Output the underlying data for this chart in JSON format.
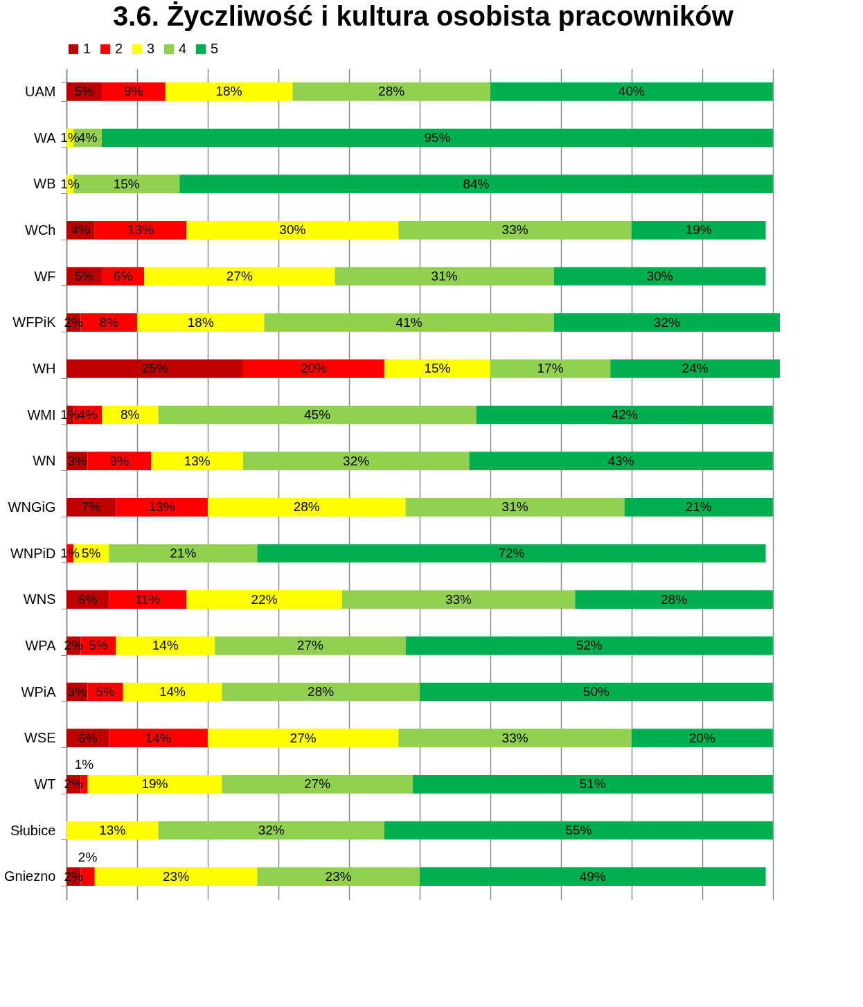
{
  "chart_data": {
    "type": "bar",
    "orientation": "horizontal",
    "stacked": true,
    "title": "3.6. Życzliwość i kultura osobista pracowników",
    "categories": [
      "UAM",
      "WA",
      "WB",
      "WCh",
      "WF",
      "WFPiK",
      "WH",
      "WMI",
      "WN",
      "WNGiG",
      "WNPiD",
      "WNS",
      "WPA",
      "WPiA",
      "WSE",
      "WT",
      "Słubice",
      "Gniezno"
    ],
    "series": [
      {
        "name": "1",
        "color": "#c00000",
        "values": [
          5,
          null,
          null,
          4,
          5,
          2,
          25,
          1,
          3,
          7,
          null,
          6,
          2,
          3,
          6,
          2,
          null,
          2
        ],
        "value_labels": [
          "5%",
          null,
          null,
          "4%",
          "5%",
          "2%",
          "25%",
          "1%",
          "3%",
          "7%",
          null,
          "6%",
          "2%",
          "3%",
          "6%",
          "2%",
          null,
          "2%"
        ]
      },
      {
        "name": "2",
        "color": "#ff0000",
        "values": [
          9,
          null,
          null,
          13,
          6,
          8,
          20,
          4,
          9,
          13,
          1,
          11,
          5,
          5,
          14,
          1,
          null,
          2
        ],
        "value_labels": [
          "9%",
          null,
          null,
          "13%",
          "6%",
          "8%",
          "20%",
          "4%",
          "9%",
          "13%",
          "1%",
          "11%",
          "5%",
          "5%",
          "14%",
          "1%",
          null,
          "2%"
        ]
      },
      {
        "name": "3",
        "color": "#ffff00",
        "values": [
          18,
          1,
          1,
          30,
          27,
          18,
          15,
          8,
          13,
          28,
          5,
          22,
          14,
          14,
          27,
          19,
          13,
          23
        ],
        "value_labels": [
          "18%",
          "1%",
          "1%",
          "30%",
          "27%",
          "18%",
          "15%",
          "8%",
          "13%",
          "28%",
          "5%",
          "22%",
          "14%",
          "14%",
          "27%",
          "19%",
          "13%",
          "23%"
        ]
      },
      {
        "name": "4",
        "color": "#92d050",
        "values": [
          28,
          4,
          15,
          33,
          31,
          41,
          17,
          45,
          32,
          31,
          21,
          33,
          27,
          28,
          33,
          27,
          32,
          23
        ],
        "value_labels": [
          "28%",
          "4%",
          "15%",
          "33%",
          "31%",
          "41%",
          "17%",
          "45%",
          "32%",
          "31%",
          "21%",
          "33%",
          "27%",
          "28%",
          "33%",
          "27%",
          "32%",
          "23%"
        ]
      },
      {
        "name": "5",
        "color": "#00b050",
        "values": [
          40,
          95,
          84,
          19,
          30,
          32,
          24,
          42,
          43,
          21,
          72,
          28,
          52,
          50,
          20,
          51,
          55,
          49
        ],
        "value_labels": [
          "40%",
          "95%",
          "84%",
          "19%",
          "30%",
          "32%",
          "24%",
          "42%",
          "43%",
          "21%",
          "72%",
          "28%",
          "52%",
          "50%",
          "20%",
          "51%",
          "55%",
          "49%"
        ]
      }
    ],
    "tick_labels": "y",
    "grid": "x",
    "legend": "top"
  }
}
